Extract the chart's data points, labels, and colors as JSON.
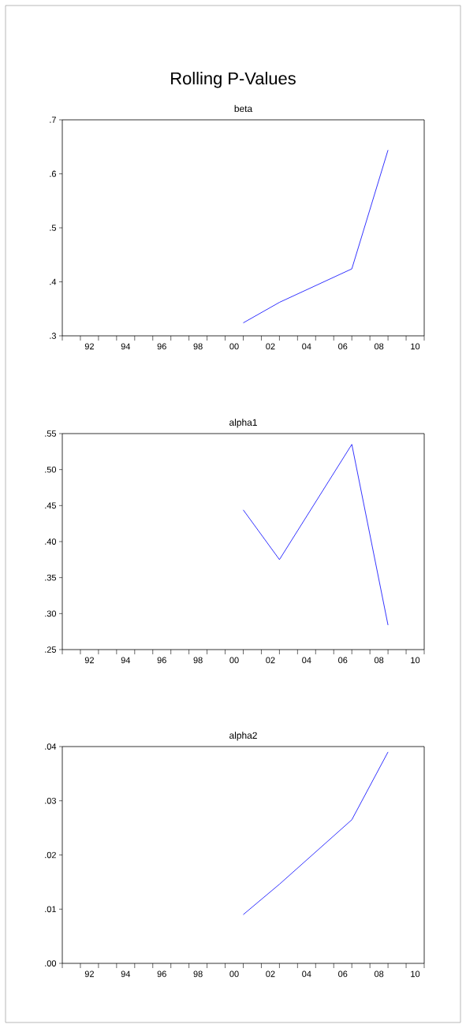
{
  "chart_data": [
    {
      "type": "line",
      "title": "Rolling P-Values",
      "subtitle": "beta",
      "x": [
        2000.5,
        2002.5,
        2006.5,
        2008.5
      ],
      "series": [
        {
          "color": "#0000ff",
          "values": [
            0.324,
            0.362,
            0.424,
            0.644
          ]
        }
      ],
      "xlim": [
        1990.5,
        2010.5
      ],
      "xticks": [
        {
          "value": 1990.5,
          "label": null
        },
        {
          "value": 1991.5,
          "label": null
        },
        {
          "value": 1992.5,
          "label": null
        },
        {
          "value": 1993.5,
          "label": null
        },
        {
          "value": 1994.5,
          "label": null
        },
        {
          "value": 1995.5,
          "label": null
        },
        {
          "value": 1996.5,
          "label": null
        },
        {
          "value": 1997.5,
          "label": null
        },
        {
          "value": 1998.5,
          "label": null
        },
        {
          "value": 1999.5,
          "label": null
        },
        {
          "value": 2000.5,
          "label": null
        },
        {
          "value": 2001.5,
          "label": null
        },
        {
          "value": 2002.5,
          "label": null
        },
        {
          "value": 2003.5,
          "label": null
        },
        {
          "value": 2004.5,
          "label": null
        },
        {
          "value": 2005.5,
          "label": null
        },
        {
          "value": 2006.5,
          "label": null
        },
        {
          "value": 2007.5,
          "label": null
        },
        {
          "value": 2008.5,
          "label": null
        },
        {
          "value": 2009.5,
          "label": null
        },
        {
          "value": 2010.5,
          "label": null
        },
        {
          "value": 1992,
          "label": "92"
        },
        {
          "value": 1994,
          "label": "94"
        },
        {
          "value": 1996,
          "label": "96"
        },
        {
          "value": 1998,
          "label": "98"
        },
        {
          "value": 2000,
          "label": "00"
        },
        {
          "value": 2002,
          "label": "02"
        },
        {
          "value": 2004,
          "label": "04"
        },
        {
          "value": 2006,
          "label": "06"
        },
        {
          "value": 2008,
          "label": "08"
        },
        {
          "value": 2010,
          "label": "10"
        }
      ],
      "ylim": [
        0.3,
        0.7
      ],
      "yticks": [
        {
          "value": 0.3,
          "label": ".3"
        },
        {
          "value": 0.4,
          "label": ".4"
        },
        {
          "value": 0.5,
          "label": ".5"
        },
        {
          "value": 0.6,
          "label": ".6"
        },
        {
          "value": 0.7,
          "label": ".7"
        }
      ]
    },
    {
      "type": "line",
      "subtitle": "alpha1",
      "x": [
        2000.5,
        2002.5,
        2006.5,
        2008.5
      ],
      "series": [
        {
          "color": "#0000ff",
          "values": [
            0.444,
            0.375,
            0.535,
            0.284
          ]
        }
      ],
      "xlim": [
        1990.5,
        2010.5
      ],
      "xticks": [
        {
          "value": 1990.5,
          "label": null
        },
        {
          "value": 1991.5,
          "label": null
        },
        {
          "value": 1992.5,
          "label": null
        },
        {
          "value": 1993.5,
          "label": null
        },
        {
          "value": 1994.5,
          "label": null
        },
        {
          "value": 1995.5,
          "label": null
        },
        {
          "value": 1996.5,
          "label": null
        },
        {
          "value": 1997.5,
          "label": null
        },
        {
          "value": 1998.5,
          "label": null
        },
        {
          "value": 1999.5,
          "label": null
        },
        {
          "value": 2000.5,
          "label": null
        },
        {
          "value": 2001.5,
          "label": null
        },
        {
          "value": 2002.5,
          "label": null
        },
        {
          "value": 2003.5,
          "label": null
        },
        {
          "value": 2004.5,
          "label": null
        },
        {
          "value": 2005.5,
          "label": null
        },
        {
          "value": 2006.5,
          "label": null
        },
        {
          "value": 2007.5,
          "label": null
        },
        {
          "value": 2008.5,
          "label": null
        },
        {
          "value": 2009.5,
          "label": null
        },
        {
          "value": 2010.5,
          "label": null
        },
        {
          "value": 1992,
          "label": "92"
        },
        {
          "value": 1994,
          "label": "94"
        },
        {
          "value": 1996,
          "label": "96"
        },
        {
          "value": 1998,
          "label": "98"
        },
        {
          "value": 2000,
          "label": "00"
        },
        {
          "value": 2002,
          "label": "02"
        },
        {
          "value": 2004,
          "label": "04"
        },
        {
          "value": 2006,
          "label": "06"
        },
        {
          "value": 2008,
          "label": "08"
        },
        {
          "value": 2010,
          "label": "10"
        }
      ],
      "ylim": [
        0.25,
        0.55
      ],
      "yticks": [
        {
          "value": 0.25,
          "label": ".25"
        },
        {
          "value": 0.3,
          "label": ".30"
        },
        {
          "value": 0.35,
          "label": ".35"
        },
        {
          "value": 0.4,
          "label": ".40"
        },
        {
          "value": 0.45,
          "label": ".45"
        },
        {
          "value": 0.5,
          "label": ".50"
        },
        {
          "value": 0.55,
          "label": ".55"
        }
      ]
    },
    {
      "type": "line",
      "subtitle": "alpha2",
      "x": [
        2000.5,
        2002.5,
        2006.5,
        2008.5
      ],
      "series": [
        {
          "color": "#0000ff",
          "values": [
            0.009,
            0.0146,
            0.0265,
            0.039
          ]
        }
      ],
      "xlim": [
        1990.5,
        2010.5
      ],
      "xticks": [
        {
          "value": 1990.5,
          "label": null
        },
        {
          "value": 1991.5,
          "label": null
        },
        {
          "value": 1992.5,
          "label": null
        },
        {
          "value": 1993.5,
          "label": null
        },
        {
          "value": 1994.5,
          "label": null
        },
        {
          "value": 1995.5,
          "label": null
        },
        {
          "value": 1996.5,
          "label": null
        },
        {
          "value": 1997.5,
          "label": null
        },
        {
          "value": 1998.5,
          "label": null
        },
        {
          "value": 1999.5,
          "label": null
        },
        {
          "value": 2000.5,
          "label": null
        },
        {
          "value": 2001.5,
          "label": null
        },
        {
          "value": 2002.5,
          "label": null
        },
        {
          "value": 2003.5,
          "label": null
        },
        {
          "value": 2004.5,
          "label": null
        },
        {
          "value": 2005.5,
          "label": null
        },
        {
          "value": 2006.5,
          "label": null
        },
        {
          "value": 2007.5,
          "label": null
        },
        {
          "value": 2008.5,
          "label": null
        },
        {
          "value": 2009.5,
          "label": null
        },
        {
          "value": 2010.5,
          "label": null
        },
        {
          "value": 1992,
          "label": "92"
        },
        {
          "value": 1994,
          "label": "94"
        },
        {
          "value": 1996,
          "label": "96"
        },
        {
          "value": 1998,
          "label": "98"
        },
        {
          "value": 2000,
          "label": "00"
        },
        {
          "value": 2002,
          "label": "02"
        },
        {
          "value": 2004,
          "label": "04"
        },
        {
          "value": 2006,
          "label": "06"
        },
        {
          "value": 2008,
          "label": "08"
        },
        {
          "value": 2010,
          "label": "10"
        }
      ],
      "ylim": [
        0.0,
        0.04
      ],
      "yticks": [
        {
          "value": 0.0,
          "label": ".00"
        },
        {
          "value": 0.01,
          "label": ".01"
        },
        {
          "value": 0.02,
          "label": ".02"
        },
        {
          "value": 0.03,
          "label": ".03"
        },
        {
          "value": 0.04,
          "label": ".04"
        }
      ]
    }
  ]
}
